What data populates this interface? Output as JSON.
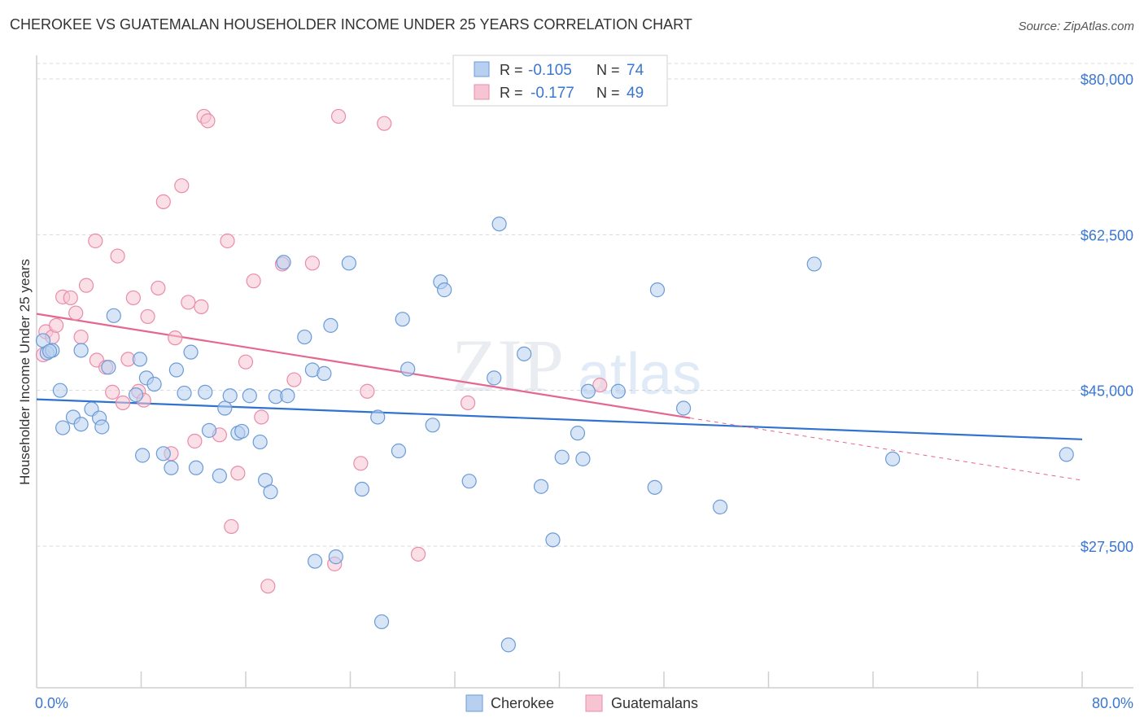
{
  "title": "CHEROKEE VS GUATEMALAN HOUSEHOLDER INCOME UNDER 25 YEARS CORRELATION CHART",
  "source": "Source: ZipAtlas.com",
  "watermark": {
    "zip": "ZIP",
    "atlas": "atlas"
  },
  "colors": {
    "blue_fill": "#b7d0f0",
    "blue_stroke": "#6b9bd6",
    "blue_line": "#2f72cf",
    "pink_fill": "#f7c4d3",
    "pink_stroke": "#e98ca9",
    "pink_line": "#e5678f",
    "axis_label_blue": "#3a77d0",
    "grid": "#d8d8d8"
  },
  "legend_stats": [
    {
      "r_label": "R =",
      "r_value": "-0.105",
      "n_label": "N =",
      "n_value": "74",
      "series": "blue"
    },
    {
      "r_label": "R =",
      "r_value": "-0.177",
      "n_label": "N =",
      "n_value": "49",
      "series": "pink"
    }
  ],
  "chart_data": {
    "type": "scatter",
    "xlabel": "",
    "ylabel": "Householder Income Under 25 years",
    "xlim": [
      0,
      80
    ],
    "ylim": [
      8000,
      81500
    ],
    "x_tick_labels": [
      "0.0%",
      "80.0%"
    ],
    "y_ticks": [
      {
        "value": 80000,
        "label": "$80,000"
      },
      {
        "value": 62500,
        "label": "$62,500"
      },
      {
        "value": 45000,
        "label": "$45,000"
      },
      {
        "value": 27500,
        "label": "$27,500"
      }
    ],
    "grid": true,
    "legend_position": "bottom-center",
    "series": [
      {
        "name": "Cherokee",
        "color": "#6b9bd6",
        "trend": {
          "x": [
            0,
            80
          ],
          "y": [
            44000,
            39500
          ]
        },
        "points": [
          [
            0.5,
            50600
          ],
          [
            0.8,
            49200
          ],
          [
            1.2,
            49500
          ],
          [
            1.8,
            45000
          ],
          [
            2.0,
            40800
          ],
          [
            2.8,
            42000
          ],
          [
            3.4,
            49500
          ],
          [
            3.4,
            41200
          ],
          [
            4.2,
            42900
          ],
          [
            4.8,
            41900
          ],
          [
            5.0,
            40900
          ],
          [
            5.5,
            47600
          ],
          [
            5.9,
            53400
          ],
          [
            7.6,
            44500
          ],
          [
            7.9,
            48500
          ],
          [
            8.1,
            37700
          ],
          [
            8.4,
            46400
          ],
          [
            9.0,
            45700
          ],
          [
            9.7,
            37900
          ],
          [
            10.3,
            36300
          ],
          [
            10.7,
            47300
          ],
          [
            11.3,
            44700
          ],
          [
            11.8,
            49300
          ],
          [
            12.2,
            36300
          ],
          [
            12.9,
            44800
          ],
          [
            13.2,
            40500
          ],
          [
            14.0,
            35400
          ],
          [
            14.4,
            43000
          ],
          [
            14.8,
            44400
          ],
          [
            15.4,
            40200
          ],
          [
            15.7,
            40400
          ],
          [
            16.3,
            44400
          ],
          [
            17.1,
            39200
          ],
          [
            17.5,
            34900
          ],
          [
            17.9,
            33600
          ],
          [
            18.3,
            44300
          ],
          [
            18.9,
            59400
          ],
          [
            19.2,
            44400
          ],
          [
            20.5,
            51000
          ],
          [
            21.1,
            47300
          ],
          [
            21.3,
            25800
          ],
          [
            22.0,
            46900
          ],
          [
            22.5,
            52300
          ],
          [
            22.9,
            26300
          ],
          [
            23.9,
            59300
          ],
          [
            24.9,
            33900
          ],
          [
            26.1,
            42000
          ],
          [
            26.4,
            19000
          ],
          [
            27.7,
            38200
          ],
          [
            28.0,
            53000
          ],
          [
            28.4,
            47400
          ],
          [
            30.3,
            41100
          ],
          [
            30.9,
            57200
          ],
          [
            31.2,
            56300
          ],
          [
            33.1,
            34800
          ],
          [
            35.0,
            46400
          ],
          [
            35.4,
            63700
          ],
          [
            36.1,
            16400
          ],
          [
            37.3,
            49100
          ],
          [
            38.6,
            34200
          ],
          [
            39.5,
            28200
          ],
          [
            40.2,
            37500
          ],
          [
            41.4,
            40200
          ],
          [
            41.8,
            37300
          ],
          [
            42.2,
            44900
          ],
          [
            44.5,
            44900
          ],
          [
            47.3,
            34100
          ],
          [
            47.5,
            56300
          ],
          [
            49.5,
            43000
          ],
          [
            52.3,
            31900
          ],
          [
            59.5,
            59200
          ],
          [
            65.5,
            37300
          ],
          [
            78.8,
            37800
          ],
          [
            1.0,
            49400
          ]
        ]
      },
      {
        "name": "Guatemalans",
        "color": "#e98ca9",
        "trend": {
          "x": [
            0,
            50
          ],
          "y": [
            53600,
            41900
          ]
        },
        "trend_dashed": {
          "x": [
            50,
            80
          ],
          "y": [
            41900,
            34900
          ]
        },
        "points": [
          [
            0.5,
            49000
          ],
          [
            0.7,
            51600
          ],
          [
            1.2,
            51000
          ],
          [
            1.5,
            52300
          ],
          [
            2.0,
            55500
          ],
          [
            2.6,
            55400
          ],
          [
            3.0,
            53700
          ],
          [
            3.4,
            51000
          ],
          [
            3.8,
            56800
          ],
          [
            4.5,
            61800
          ],
          [
            4.6,
            48400
          ],
          [
            5.3,
            47600
          ],
          [
            5.8,
            44800
          ],
          [
            6.2,
            60100
          ],
          [
            6.6,
            43600
          ],
          [
            7.0,
            48500
          ],
          [
            7.4,
            55400
          ],
          [
            7.8,
            44900
          ],
          [
            8.2,
            43900
          ],
          [
            8.5,
            53300
          ],
          [
            9.3,
            56500
          ],
          [
            9.7,
            66200
          ],
          [
            10.3,
            37900
          ],
          [
            10.6,
            50900
          ],
          [
            11.1,
            68000
          ],
          [
            11.6,
            54900
          ],
          [
            12.1,
            39300
          ],
          [
            12.6,
            54400
          ],
          [
            12.8,
            75800
          ],
          [
            13.1,
            75300
          ],
          [
            14.0,
            40000
          ],
          [
            14.6,
            61800
          ],
          [
            15.4,
            35700
          ],
          [
            14.9,
            29700
          ],
          [
            16.0,
            48200
          ],
          [
            16.6,
            57300
          ],
          [
            17.2,
            42000
          ],
          [
            17.7,
            23000
          ],
          [
            18.8,
            59200
          ],
          [
            19.7,
            46200
          ],
          [
            21.1,
            59300
          ],
          [
            22.8,
            25500
          ],
          [
            23.1,
            75800
          ],
          [
            24.8,
            36800
          ],
          [
            25.3,
            44900
          ],
          [
            26.6,
            75000
          ],
          [
            29.2,
            26600
          ],
          [
            33.0,
            43600
          ],
          [
            43.1,
            45600
          ]
        ]
      }
    ]
  }
}
